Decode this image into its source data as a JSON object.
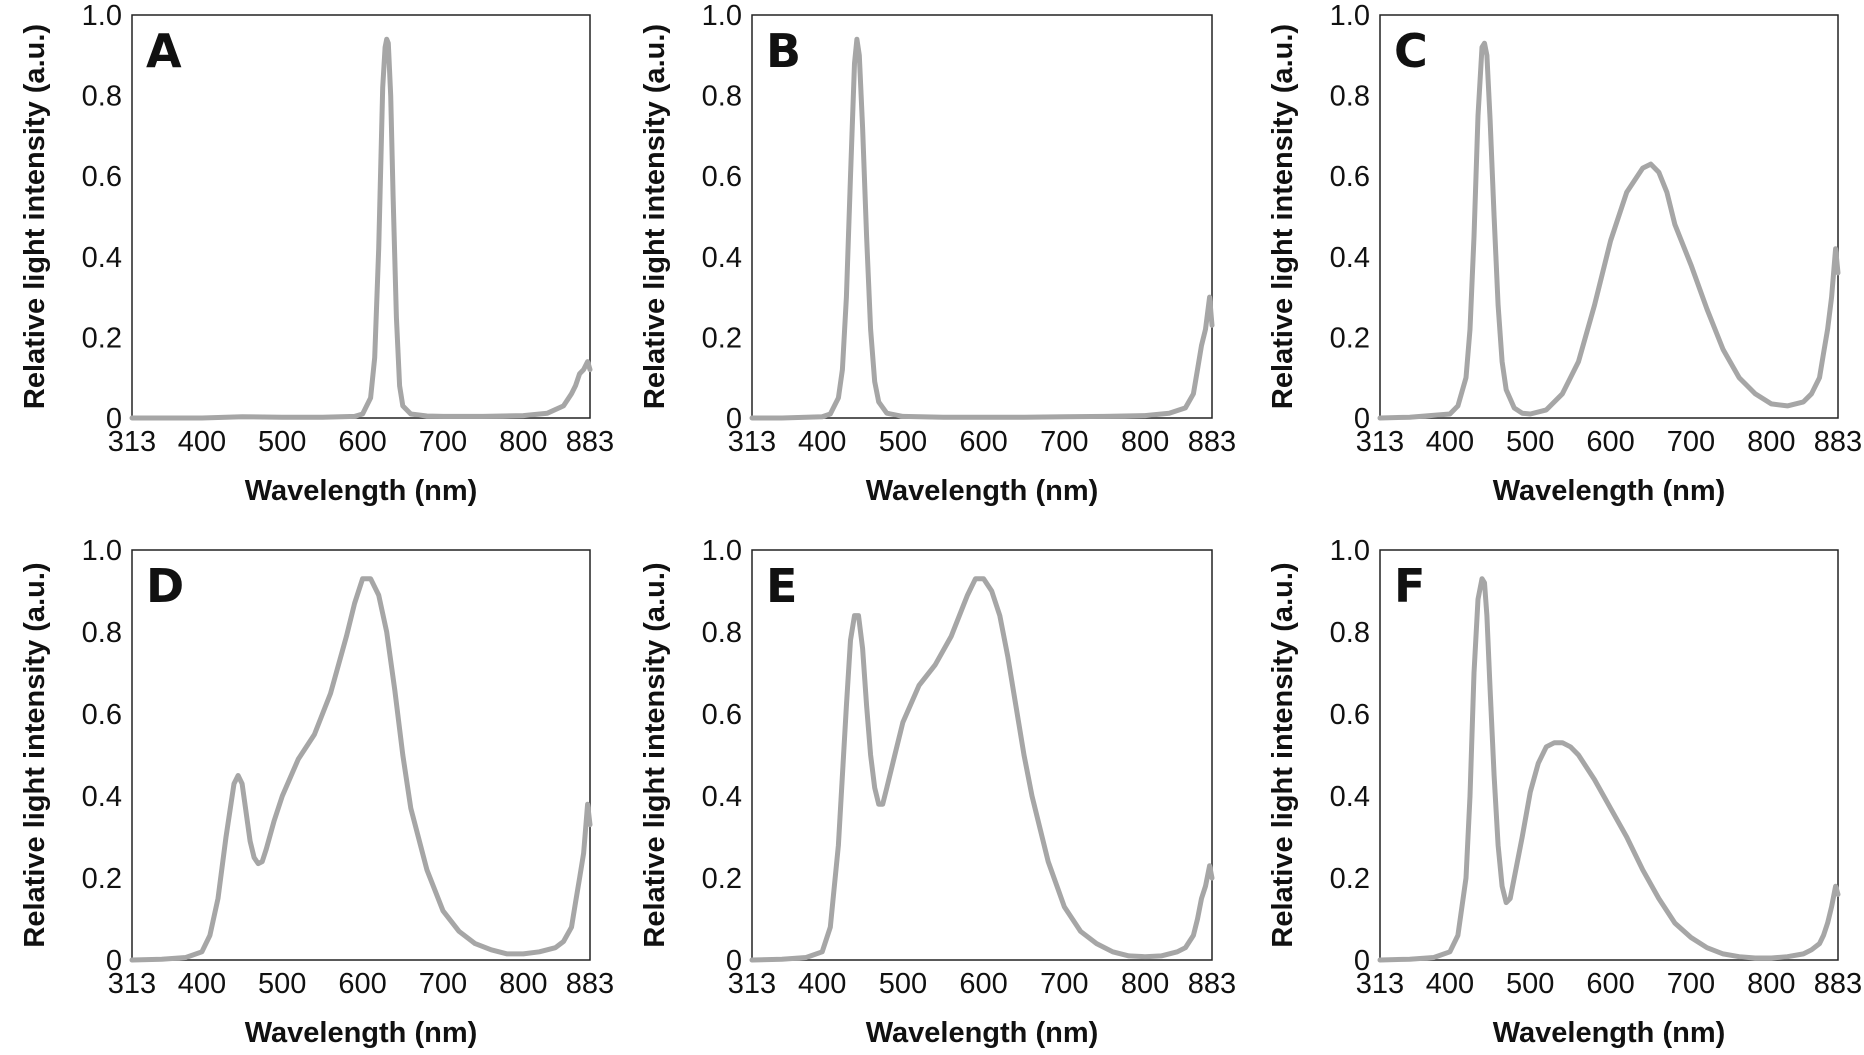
{
  "figure": {
    "background": "#ffffff",
    "line_color": "#a6a6a6"
  },
  "chart_data": [
    {
      "type": "line",
      "panel_label": "A",
      "xlabel": "Wavelength (nm)",
      "ylabel": "Relative light intensity (a.u.)",
      "xlim": [
        313,
        883
      ],
      "ylim": [
        0,
        1.0
      ],
      "xticks": [
        313,
        400,
        500,
        600,
        700,
        800,
        883
      ],
      "yticks": [
        0,
        0.2,
        0.4,
        0.6,
        0.8,
        1.0
      ],
      "ytick_labels": [
        "0",
        "0.2",
        "0.4",
        "0.6",
        "0.8",
        "1.0"
      ],
      "grid": false,
      "series": [
        {
          "color": "#a6a6a6",
          "x": [
            313,
            350,
            400,
            450,
            500,
            550,
            590,
            600,
            610,
            615,
            620,
            625,
            628,
            630,
            632,
            635,
            638,
            642,
            646,
            650,
            660,
            680,
            700,
            750,
            800,
            830,
            850,
            860,
            865,
            870,
            875,
            880,
            883
          ],
          "y": [
            0.0,
            0.0,
            0.0,
            0.003,
            0.002,
            0.002,
            0.004,
            0.01,
            0.05,
            0.15,
            0.42,
            0.82,
            0.92,
            0.94,
            0.93,
            0.8,
            0.55,
            0.25,
            0.08,
            0.03,
            0.01,
            0.005,
            0.004,
            0.004,
            0.006,
            0.012,
            0.03,
            0.06,
            0.08,
            0.11,
            0.12,
            0.14,
            0.12
          ]
        }
      ]
    },
    {
      "type": "line",
      "panel_label": "B",
      "xlabel": "Wavelength (nm)",
      "ylabel": "Relative light intensity (a.u.)",
      "xlim": [
        313,
        883
      ],
      "ylim": [
        0,
        1.0
      ],
      "xticks": [
        313,
        400,
        500,
        600,
        700,
        800,
        883
      ],
      "yticks": [
        0,
        0.2,
        0.4,
        0.6,
        0.8,
        1.0
      ],
      "ytick_labels": [
        "0",
        "0.2",
        "0.4",
        "0.6",
        "0.8",
        "1.0"
      ],
      "grid": false,
      "series": [
        {
          "color": "#a6a6a6",
          "x": [
            313,
            350,
            400,
            410,
            420,
            425,
            430,
            435,
            440,
            443,
            446,
            450,
            455,
            460,
            465,
            470,
            480,
            500,
            550,
            600,
            650,
            700,
            750,
            800,
            830,
            850,
            860,
            865,
            870,
            875,
            880,
            883
          ],
          "y": [
            0.0,
            0.0,
            0.003,
            0.01,
            0.05,
            0.12,
            0.3,
            0.6,
            0.88,
            0.94,
            0.9,
            0.72,
            0.45,
            0.22,
            0.09,
            0.04,
            0.012,
            0.004,
            0.002,
            0.002,
            0.002,
            0.003,
            0.004,
            0.006,
            0.012,
            0.025,
            0.06,
            0.12,
            0.18,
            0.22,
            0.3,
            0.23
          ]
        }
      ]
    },
    {
      "type": "line",
      "panel_label": "C",
      "xlabel": "Wavelength (nm)",
      "ylabel": "Relative light intensity (a.u.)",
      "xlim": [
        313,
        883
      ],
      "ylim": [
        0,
        1.0
      ],
      "xticks": [
        313,
        400,
        500,
        600,
        700,
        800,
        883
      ],
      "yticks": [
        0,
        0.2,
        0.4,
        0.6,
        0.8,
        1.0
      ],
      "ytick_labels": [
        "0",
        "0.2",
        "0.4",
        "0.6",
        "0.8",
        "1.0"
      ],
      "grid": false,
      "series": [
        {
          "color": "#a6a6a6",
          "x": [
            313,
            350,
            400,
            410,
            420,
            425,
            430,
            435,
            440,
            443,
            446,
            450,
            455,
            460,
            465,
            470,
            480,
            490,
            500,
            520,
            540,
            560,
            580,
            600,
            620,
            640,
            650,
            660,
            670,
            680,
            700,
            720,
            740,
            760,
            780,
            800,
            820,
            840,
            850,
            860,
            865,
            870,
            875,
            880,
            883
          ],
          "y": [
            0.0,
            0.002,
            0.01,
            0.03,
            0.1,
            0.22,
            0.45,
            0.75,
            0.92,
            0.93,
            0.9,
            0.74,
            0.5,
            0.28,
            0.14,
            0.07,
            0.025,
            0.012,
            0.01,
            0.02,
            0.06,
            0.14,
            0.28,
            0.44,
            0.56,
            0.62,
            0.63,
            0.61,
            0.56,
            0.48,
            0.38,
            0.27,
            0.17,
            0.1,
            0.06,
            0.035,
            0.03,
            0.04,
            0.06,
            0.1,
            0.16,
            0.22,
            0.3,
            0.42,
            0.36
          ]
        }
      ]
    },
    {
      "type": "line",
      "panel_label": "D",
      "xlabel": "Wavelength (nm)",
      "ylabel": "Relative light intensity (a.u.)",
      "xlim": [
        313,
        883
      ],
      "ylim": [
        0,
        1.0
      ],
      "xticks": [
        313,
        400,
        500,
        600,
        700,
        800,
        883
      ],
      "yticks": [
        0,
        0.2,
        0.4,
        0.6,
        0.8,
        1.0
      ],
      "ytick_labels": [
        "0",
        "0.2",
        "0.4",
        "0.6",
        "0.8",
        "1.0"
      ],
      "grid": false,
      "series": [
        {
          "color": "#a6a6a6",
          "x": [
            313,
            350,
            380,
            400,
            410,
            420,
            430,
            440,
            445,
            450,
            455,
            460,
            465,
            470,
            475,
            480,
            490,
            500,
            520,
            540,
            560,
            580,
            590,
            600,
            610,
            620,
            630,
            640,
            650,
            660,
            680,
            700,
            720,
            740,
            760,
            780,
            800,
            820,
            840,
            850,
            860,
            865,
            870,
            875,
            880,
            883
          ],
          "y": [
            0.0,
            0.002,
            0.006,
            0.02,
            0.06,
            0.15,
            0.3,
            0.43,
            0.45,
            0.43,
            0.36,
            0.29,
            0.25,
            0.235,
            0.24,
            0.27,
            0.34,
            0.4,
            0.49,
            0.55,
            0.65,
            0.79,
            0.87,
            0.93,
            0.93,
            0.89,
            0.8,
            0.66,
            0.5,
            0.37,
            0.22,
            0.12,
            0.07,
            0.04,
            0.025,
            0.015,
            0.015,
            0.02,
            0.03,
            0.045,
            0.08,
            0.14,
            0.2,
            0.26,
            0.38,
            0.33
          ]
        }
      ]
    },
    {
      "type": "line",
      "panel_label": "E",
      "xlabel": "Wavelength (nm)",
      "ylabel": "Relative light intensity (a.u.)",
      "xlim": [
        313,
        883
      ],
      "ylim": [
        0,
        1.0
      ],
      "xticks": [
        313,
        400,
        500,
        600,
        700,
        800,
        883
      ],
      "yticks": [
        0,
        0.2,
        0.4,
        0.6,
        0.8,
        1.0
      ],
      "ytick_labels": [
        "0",
        "0.2",
        "0.4",
        "0.6",
        "0.8",
        "1.0"
      ],
      "grid": false,
      "series": [
        {
          "color": "#a6a6a6",
          "x": [
            313,
            350,
            380,
            400,
            410,
            420,
            430,
            435,
            440,
            445,
            450,
            455,
            460,
            465,
            470,
            475,
            480,
            490,
            500,
            520,
            540,
            560,
            570,
            580,
            590,
            600,
            610,
            620,
            630,
            640,
            650,
            660,
            680,
            700,
            720,
            740,
            760,
            780,
            800,
            820,
            840,
            850,
            860,
            865,
            870,
            875,
            880,
            883
          ],
          "y": [
            0.0,
            0.002,
            0.006,
            0.02,
            0.08,
            0.28,
            0.62,
            0.78,
            0.84,
            0.84,
            0.76,
            0.62,
            0.5,
            0.42,
            0.38,
            0.38,
            0.42,
            0.5,
            0.58,
            0.67,
            0.72,
            0.79,
            0.84,
            0.89,
            0.93,
            0.93,
            0.9,
            0.84,
            0.74,
            0.62,
            0.5,
            0.4,
            0.24,
            0.13,
            0.07,
            0.04,
            0.02,
            0.01,
            0.008,
            0.01,
            0.02,
            0.03,
            0.06,
            0.1,
            0.15,
            0.18,
            0.23,
            0.2
          ]
        }
      ]
    },
    {
      "type": "line",
      "panel_label": "F",
      "xlabel": "Wavelength (nm)",
      "ylabel": "Relative light intensity (a.u.)",
      "xlim": [
        313,
        883
      ],
      "ylim": [
        0,
        1.0
      ],
      "xticks": [
        313,
        400,
        500,
        600,
        700,
        800,
        883
      ],
      "yticks": [
        0,
        0.2,
        0.4,
        0.6,
        0.8,
        1.0
      ],
      "ytick_labels": [
        "0",
        "0.2",
        "0.4",
        "0.6",
        "0.8",
        "1.0"
      ],
      "grid": false,
      "series": [
        {
          "color": "#a6a6a6",
          "x": [
            313,
            350,
            380,
            400,
            410,
            420,
            425,
            430,
            435,
            440,
            443,
            446,
            450,
            455,
            460,
            465,
            470,
            475,
            480,
            490,
            500,
            510,
            520,
            530,
            540,
            550,
            560,
            580,
            600,
            620,
            640,
            660,
            680,
            700,
            720,
            740,
            760,
            780,
            800,
            820,
            840,
            850,
            860,
            865,
            870,
            875,
            880,
            883
          ],
          "y": [
            0.0,
            0.002,
            0.006,
            0.02,
            0.06,
            0.2,
            0.4,
            0.7,
            0.88,
            0.93,
            0.92,
            0.84,
            0.66,
            0.45,
            0.28,
            0.18,
            0.14,
            0.15,
            0.2,
            0.3,
            0.41,
            0.48,
            0.52,
            0.53,
            0.53,
            0.52,
            0.5,
            0.44,
            0.37,
            0.3,
            0.22,
            0.15,
            0.09,
            0.055,
            0.03,
            0.015,
            0.008,
            0.005,
            0.005,
            0.008,
            0.015,
            0.025,
            0.04,
            0.06,
            0.09,
            0.13,
            0.18,
            0.16
          ]
        }
      ]
    }
  ]
}
